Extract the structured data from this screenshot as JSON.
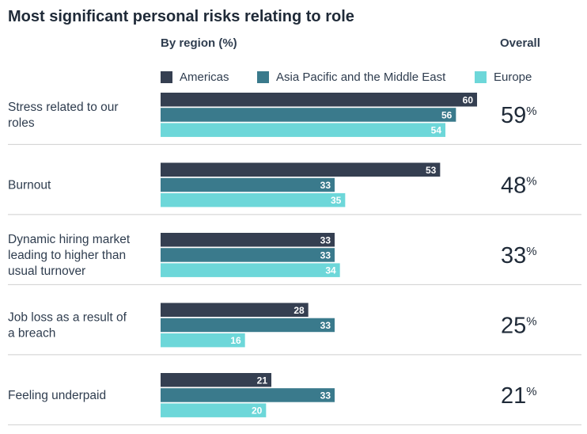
{
  "title": "Most significant personal risks relating to role",
  "region_heading": "By region (%)",
  "overall_heading": "Overall",
  "colors": {
    "americas": "#353f51",
    "apac_me": "#3a7a8c",
    "europe": "#6dd7d9",
    "divider": "#cfcfcf",
    "text": "#2f3d4f"
  },
  "chart_data": {
    "type": "bar",
    "orientation": "horizontal",
    "title": "Most significant personal risks relating to role",
    "subtitle": "By region (%)",
    "legend_position": "top",
    "xlim": [
      0,
      100
    ],
    "categories": [
      [
        "Stress related to our",
        "roles"
      ],
      [
        "Burnout"
      ],
      [
        "Dynamic hiring market",
        "leading to higher than",
        "usual turnover"
      ],
      [
        "Job loss as a result of",
        "a breach"
      ],
      [
        "Feeling underpaid"
      ]
    ],
    "series": [
      {
        "name": "Americas",
        "values": [
          60,
          53,
          33,
          28,
          21
        ]
      },
      {
        "name": "Asia Pacific and the Middle East",
        "values": [
          56,
          33,
          33,
          33,
          33
        ]
      },
      {
        "name": "Europe",
        "values": [
          54,
          35,
          34,
          16,
          20
        ]
      }
    ],
    "overall": {
      "label": "Overall",
      "values": [
        59,
        48,
        33,
        25,
        21
      ],
      "unit": "%"
    }
  }
}
